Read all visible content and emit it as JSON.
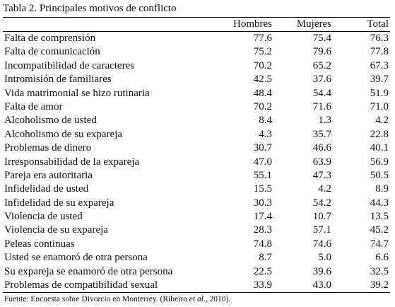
{
  "title": "Tabla 2. Principales motivos de conflicto",
  "columns": [
    "",
    "Hombres",
    "Mujeres",
    "Total"
  ],
  "rows": [
    [
      "Falta de comprensión",
      "77.6",
      "75.4",
      "76.3"
    ],
    [
      "Falta de comunicación",
      "75.2",
      "79.6",
      "77.8"
    ],
    [
      "Incompatibilidad de caracteres",
      "70.2",
      "65.2",
      "67.3"
    ],
    [
      "Intromisión de familiares",
      "42.5",
      "37.6",
      "39.7"
    ],
    [
      "Vida matrimonial se hizo rutinaria",
      "48.4",
      "54.4",
      "51.9"
    ],
    [
      "Falta de amor",
      "70.2",
      "71.6",
      "71.0"
    ],
    [
      "Alcoholismo de usted",
      "8.4",
      "1.3",
      "4.2"
    ],
    [
      "Alcoholismo de su expareja",
      "4.3",
      "35.7",
      "22.8"
    ],
    [
      "Problemas de dinero",
      "30.7",
      "46.6",
      "40.1"
    ],
    [
      "Irresponsabilidad de la expareja",
      "47.0",
      "63.9",
      "56.9"
    ],
    [
      "Pareja era autoritaria",
      "55.1",
      "47.3",
      "50.5"
    ],
    [
      "Infidelidad de usted",
      "15.5",
      "4.2",
      "8.9"
    ],
    [
      "Infidelidad de su expareja",
      "30.3",
      "54.2",
      "44.3"
    ],
    [
      "Violencia de usted",
      "17.4",
      "10.7",
      "13.5"
    ],
    [
      "Violencia de su expareja",
      "28.3",
      "57.1",
      "45.2"
    ],
    [
      "Peleas continuas",
      "74.8",
      "74.6",
      "74.7"
    ],
    [
      "Usted se enamoró de otra persona",
      "8.7",
      "5.0",
      "6.6"
    ],
    [
      "Su expareja se enamoró de otra persona",
      "22.5",
      "39.6",
      "32.5"
    ],
    [
      "Problemas de compatibilidad sexual",
      "33.9",
      "43.0",
      "39.2"
    ]
  ],
  "source": {
    "prefix": "Fuente: Encuesta sobre Divorcio en Monterrey. (Ribeiro ",
    "italic": "et al",
    "suffix": "., 2010)."
  }
}
